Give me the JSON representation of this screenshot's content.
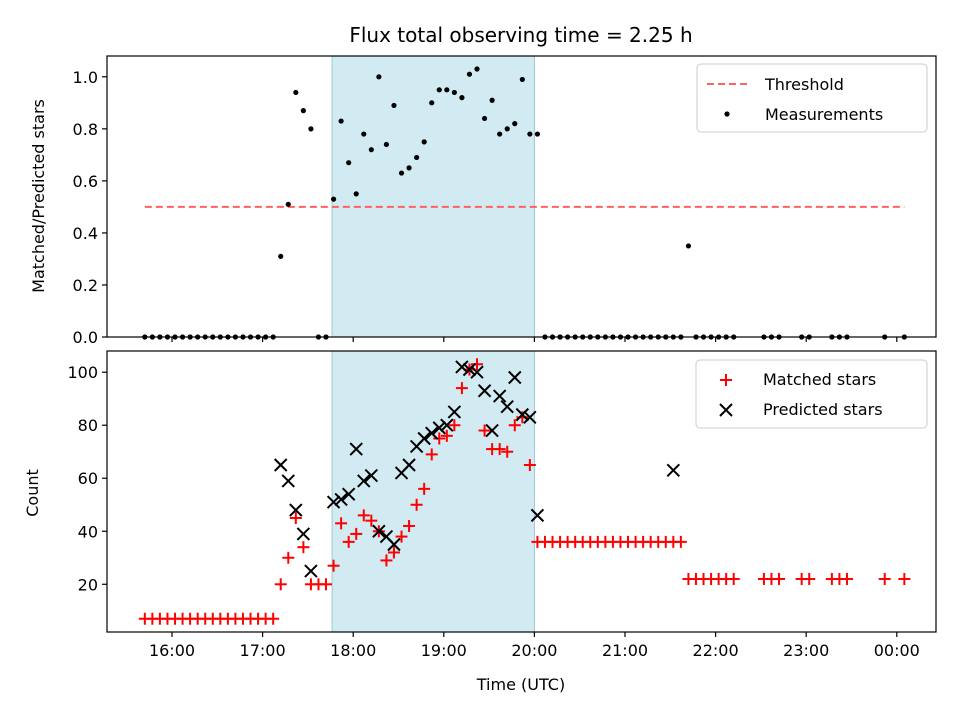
{
  "chart_data": [
    {
      "type": "scatter",
      "title": "Flux total observing time = 2.25 h",
      "ylabel": "Matched/Predicted stars",
      "xlabel": "",
      "ylim": [
        0,
        1.08
      ],
      "yticks": [
        "0.0",
        "0.2",
        "0.4",
        "0.6",
        "0.8",
        "1.0"
      ],
      "shaded_interval": [
        "17:46",
        "20:00"
      ],
      "shade_color": "#add8e6",
      "threshold": {
        "name": "Threshold",
        "value": 0.5,
        "x_range": [
          "15:42",
          "00:05"
        ],
        "color": "#ff6060"
      },
      "series": [
        {
          "name": "Measurements",
          "color": "#000000",
          "x": [
            "15:42",
            "15:47",
            "15:52",
            "15:57",
            "16:02",
            "16:07",
            "16:12",
            "16:17",
            "16:22",
            "16:27",
            "16:32",
            "16:37",
            "16:42",
            "16:47",
            "16:52",
            "16:57",
            "17:02",
            "17:07",
            "17:12",
            "17:17",
            "17:22",
            "17:27",
            "17:32",
            "17:37",
            "17:42",
            "17:47",
            "17:52",
            "17:57",
            "18:02",
            "18:07",
            "18:12",
            "18:17",
            "18:22",
            "18:27",
            "18:32",
            "18:37",
            "18:42",
            "18:47",
            "18:52",
            "18:57",
            "19:02",
            "19:07",
            "19:12",
            "19:17",
            "19:22",
            "19:27",
            "19:32",
            "19:37",
            "19:42",
            "19:47",
            "19:52",
            "19:57",
            "20:02",
            "20:07",
            "20:12",
            "20:17",
            "20:22",
            "20:27",
            "20:32",
            "20:37",
            "20:42",
            "20:47",
            "20:52",
            "20:57",
            "21:02",
            "21:07",
            "21:12",
            "21:17",
            "21:22",
            "21:27",
            "21:32",
            "21:37",
            "21:42",
            "21:47",
            "21:52",
            "21:57",
            "22:02",
            "22:07",
            "22:12",
            "22:32",
            "22:37",
            "22:42",
            "22:57",
            "23:02",
            "23:17",
            "23:22",
            "23:27",
            "23:52",
            "00:05"
          ],
          "y": [
            0,
            0,
            0,
            0,
            0,
            0,
            0,
            0,
            0,
            0,
            0,
            0,
            0,
            0,
            0,
            0,
            0,
            0,
            0.31,
            0.51,
            0.94,
            0.87,
            0.8,
            0,
            0,
            0.53,
            0.83,
            0.67,
            0.55,
            0.78,
            0.72,
            1.0,
            0.74,
            0.89,
            0.63,
            0.65,
            0.69,
            0.75,
            0.9,
            0.95,
            0.95,
            0.94,
            0.92,
            1.01,
            1.03,
            0.84,
            0.91,
            0.78,
            0.8,
            0.82,
            0.99,
            0.78,
            0.78,
            0,
            0,
            0,
            0,
            0,
            0,
            0,
            0,
            0,
            0,
            0,
            0,
            0,
            0,
            0,
            0,
            0,
            0,
            0,
            0.35,
            0,
            0,
            0,
            0,
            0,
            0,
            0,
            0,
            0,
            0,
            0,
            0,
            0,
            0,
            0,
            0
          ]
        }
      ]
    },
    {
      "type": "scatter",
      "title": "",
      "ylabel": "Count",
      "xlabel": "Time (UTC)",
      "ylim": [
        2,
        108
      ],
      "yticks": [
        "20",
        "40",
        "60",
        "80",
        "100"
      ],
      "xticks": [
        "16:00",
        "17:00",
        "18:00",
        "19:00",
        "20:00",
        "21:00",
        "22:00",
        "23:00",
        "00:00"
      ],
      "shaded_interval": [
        "17:46",
        "20:00"
      ],
      "series": [
        {
          "name": "Matched stars",
          "marker": "plus",
          "color": "#ff0000",
          "x": [
            "15:42",
            "15:47",
            "15:52",
            "15:57",
            "16:02",
            "16:07",
            "16:12",
            "16:17",
            "16:22",
            "16:27",
            "16:32",
            "16:37",
            "16:42",
            "16:47",
            "16:52",
            "16:57",
            "17:02",
            "17:07",
            "17:12",
            "17:17",
            "17:22",
            "17:27",
            "17:32",
            "17:37",
            "17:42",
            "17:47",
            "17:52",
            "17:57",
            "18:02",
            "18:07",
            "18:12",
            "18:17",
            "18:22",
            "18:27",
            "18:32",
            "18:37",
            "18:42",
            "18:47",
            "18:52",
            "18:57",
            "19:02",
            "19:07",
            "19:12",
            "19:17",
            "19:22",
            "19:27",
            "19:32",
            "19:37",
            "19:42",
            "19:47",
            "19:52",
            "19:57",
            "20:02",
            "20:07",
            "20:12",
            "20:17",
            "20:22",
            "20:27",
            "20:32",
            "20:37",
            "20:42",
            "20:47",
            "20:52",
            "20:57",
            "21:02",
            "21:07",
            "21:12",
            "21:17",
            "21:22",
            "21:27",
            "21:32",
            "21:37",
            "21:42",
            "21:47",
            "21:52",
            "21:57",
            "22:02",
            "22:07",
            "22:12",
            "22:32",
            "22:37",
            "22:42",
            "22:57",
            "23:02",
            "23:17",
            "23:22",
            "23:27",
            "23:52",
            "00:05"
          ],
          "y": [
            7,
            7,
            7,
            7,
            7,
            7,
            7,
            7,
            7,
            7,
            7,
            7,
            7,
            7,
            7,
            7,
            7,
            7,
            20,
            30,
            45,
            34,
            20,
            20,
            20,
            27,
            43,
            36,
            39,
            46,
            44,
            40,
            29,
            32,
            38,
            42,
            50,
            56,
            69,
            75,
            76,
            80,
            94,
            101,
            103,
            78,
            71,
            71,
            70,
            80,
            83,
            65,
            36,
            36,
            36,
            36,
            36,
            36,
            36,
            36,
            36,
            36,
            36,
            36,
            36,
            36,
            36,
            36,
            36,
            36,
            36,
            36,
            22,
            22,
            22,
            22,
            22,
            22,
            22,
            22,
            22,
            22,
            22,
            22,
            22,
            22,
            22,
            22,
            22
          ]
        },
        {
          "name": "Predicted stars",
          "marker": "x",
          "color": "#000000",
          "x": [
            "17:12",
            "17:17",
            "17:22",
            "17:27",
            "17:32",
            "17:47",
            "17:52",
            "17:57",
            "18:02",
            "18:07",
            "18:12",
            "18:17",
            "18:22",
            "18:27",
            "18:32",
            "18:37",
            "18:42",
            "18:47",
            "18:52",
            "18:57",
            "19:02",
            "19:07",
            "19:12",
            "19:17",
            "19:22",
            "19:27",
            "19:32",
            "19:37",
            "19:42",
            "19:47",
            "19:52",
            "19:57",
            "20:02",
            "21:32"
          ],
          "y": [
            65,
            59,
            48,
            39,
            25,
            51,
            52,
            54,
            71,
            59,
            61,
            40,
            38,
            35,
            62,
            65,
            72,
            75,
            77,
            79,
            80,
            85,
            102,
            101,
            100,
            93,
            78,
            91,
            87,
            98,
            84,
            83,
            46,
            63
          ]
        }
      ]
    }
  ]
}
